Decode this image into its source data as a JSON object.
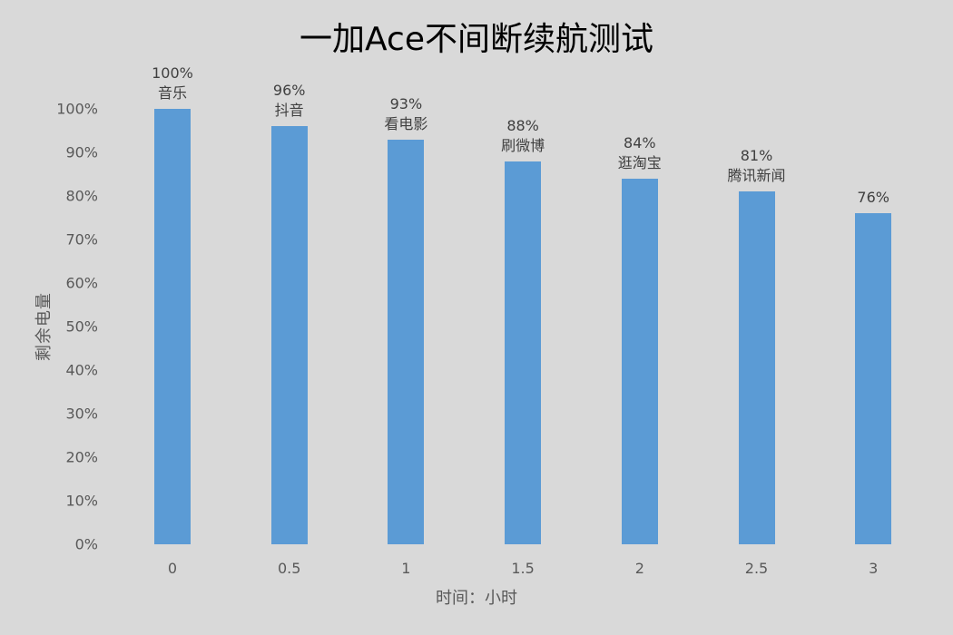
{
  "chart_data": {
    "type": "bar",
    "title": "一加Ace不间断续航测试",
    "xlabel": "时间：小时",
    "ylabel": "剩余电量",
    "categories": [
      "0",
      "0.5",
      "1",
      "1.5",
      "2",
      "2.5",
      "3"
    ],
    "values": [
      100,
      96,
      93,
      88,
      84,
      81,
      76
    ],
    "value_labels": [
      "100%",
      "96%",
      "93%",
      "88%",
      "84%",
      "81%",
      "76%"
    ],
    "annotations": [
      "音乐",
      "抖音",
      "看电影",
      "刷微博",
      "逛淘宝",
      "腾讯新闻",
      ""
    ],
    "ylim": [
      0,
      100
    ],
    "yticks": [
      "0%",
      "10%",
      "20%",
      "30%",
      "40%",
      "50%",
      "60%",
      "70%",
      "80%",
      "90%",
      "100%"
    ],
    "grid": false,
    "legend": null,
    "bar_color": "#5b9bd5",
    "background": "#d9d9d9"
  }
}
